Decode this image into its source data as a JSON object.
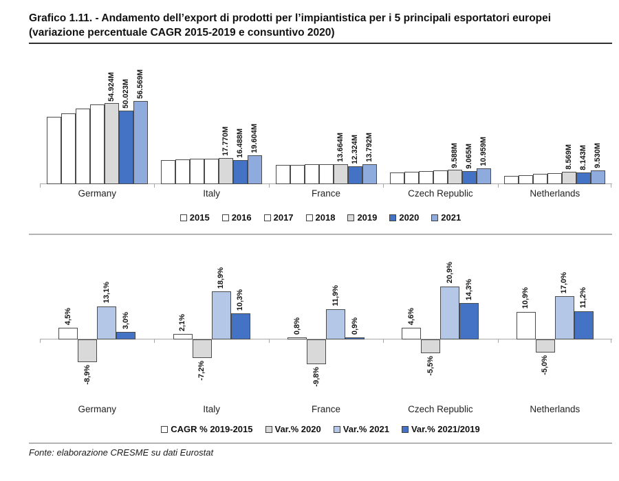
{
  "title": {
    "line1": "Grafico 1.11. - Andamento dell’export di prodotti per l’impiantistica per i 5 principali esportatori europei",
    "line2": "(variazione percentuale CAGR 2015-2019 e consuntivo 2020)"
  },
  "footer": {
    "source": "Fonte: elaborazione CRESME su dati Eurostat"
  },
  "colors": {
    "white": "#ffffff",
    "gray": "#d9d9d9",
    "blue": "#4472c4",
    "light_blue_top": "#8faadc",
    "light_blue_bottom": "#b4c7e7",
    "axis": "#a6a6a6",
    "bar_border": "#4a4a4a"
  },
  "chart_data": [
    {
      "type": "bar",
      "title": "Export values by year (unit: M)",
      "categories": [
        "Germany",
        "Italy",
        "France",
        "Czech Republic",
        "Netherlands"
      ],
      "ylim": [
        0,
        60
      ],
      "grid": false,
      "legend_position": "bottom",
      "series": [
        {
          "name": "2015",
          "color": "#ffffff",
          "values": [
            45.8,
            16.3,
            13.2,
            8.0,
            5.7
          ],
          "labels": null
        },
        {
          "name": "2016",
          "color": "#ffffff",
          "values": [
            48.0,
            16.7,
            13.3,
            8.4,
            6.3
          ],
          "labels": null
        },
        {
          "name": "2017",
          "color": "#ffffff",
          "values": [
            51.5,
            17.1,
            13.45,
            8.8,
            7.0
          ],
          "labels": null
        },
        {
          "name": "2018",
          "color": "#ffffff",
          "values": [
            54.0,
            17.5,
            13.55,
            9.2,
            7.7
          ],
          "labels": null
        },
        {
          "name": "2019",
          "color": "#d9d9d9",
          "values": [
            54.924,
            17.77,
            13.664,
            9.588,
            8.569
          ],
          "labels": [
            "54.924M",
            "17.770M",
            "13.664M",
            "9.588M",
            "8.569M"
          ]
        },
        {
          "name": "2020",
          "color": "#4472c4",
          "values": [
            50.023,
            16.488,
            12.324,
            9.065,
            8.143
          ],
          "labels": [
            "50.023M",
            "16.488M",
            "12.324M",
            "9.065M",
            "8.143M"
          ]
        },
        {
          "name": "2021",
          "color": "#8faadc",
          "values": [
            56.569,
            19.604,
            13.792,
            10.959,
            9.53
          ],
          "labels": [
            "56.569M",
            "19.604M",
            "13.792M",
            "10.959M",
            "9.530M"
          ]
        }
      ]
    },
    {
      "type": "bar",
      "title": "Percentage variation",
      "categories": [
        "Germany",
        "Italy",
        "France",
        "Czech Republic",
        "Netherlands"
      ],
      "ylim": [
        -12,
        24
      ],
      "grid": false,
      "legend_position": "bottom",
      "series": [
        {
          "name": "CAGR % 2019-2015",
          "color": "#ffffff",
          "values": [
            4.5,
            2.1,
            0.8,
            4.6,
            10.9
          ],
          "labels": [
            "4,5%",
            "2,1%",
            "0,8%",
            "4,6%",
            "10,9%"
          ]
        },
        {
          "name": "Var.% 2020",
          "color": "#d9d9d9",
          "values": [
            -8.9,
            -7.2,
            -9.8,
            -5.5,
            -5.0
          ],
          "labels": [
            "-8,9%",
            "-7,2%",
            "-9,8%",
            "-5,5%",
            "-5,0%"
          ]
        },
        {
          "name": "Var.% 2021",
          "color": "#b4c7e7",
          "values": [
            13.1,
            18.9,
            11.9,
            20.9,
            17.0
          ],
          "labels": [
            "13,1%",
            "18,9%",
            "11,9%",
            "20,9%",
            "17,0%"
          ]
        },
        {
          "name": "Var.% 2021/2019",
          "color": "#4472c4",
          "values": [
            3.0,
            10.3,
            0.9,
            14.3,
            11.2
          ],
          "labels": [
            "3,0%",
            "10,3%",
            "0,9%",
            "14,3%",
            "11,2%"
          ]
        }
      ]
    }
  ]
}
